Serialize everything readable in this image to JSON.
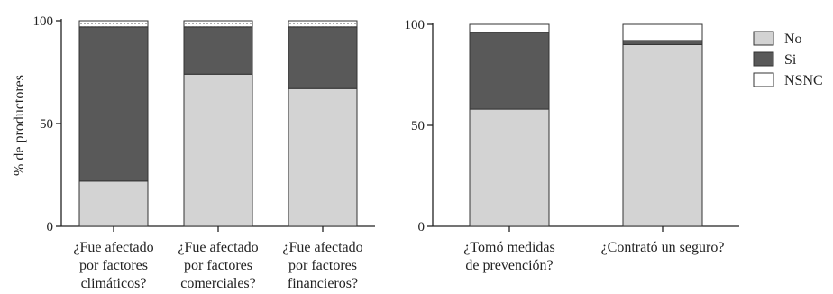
{
  "chart_data": [
    {
      "type": "bar",
      "stacked": true,
      "ylabel": "% de productores",
      "ylim": [
        0,
        100
      ],
      "yticks": [
        0,
        50,
        100
      ],
      "grid": false,
      "categories": [
        [
          "¿Fue afectado",
          "por factores",
          "climáticos?"
        ],
        [
          "¿Fue afectado",
          "por factores",
          "comerciales?"
        ],
        [
          "¿Fue afectado",
          "por factores",
          "financieros?"
        ]
      ],
      "series": [
        {
          "name": "No",
          "values": [
            22,
            74,
            67
          ]
        },
        {
          "name": "Si",
          "values": [
            75,
            23,
            30
          ]
        },
        {
          "name": "NSNC",
          "values": [
            3,
            3,
            3
          ]
        }
      ]
    },
    {
      "type": "bar",
      "stacked": true,
      "ylabel": "",
      "ylim": [
        0,
        100
      ],
      "yticks": [
        0,
        50,
        100
      ],
      "grid": false,
      "categories": [
        [
          "¿Tomó medidas",
          "de prevención?"
        ],
        [
          "¿Contrató un seguro?"
        ]
      ],
      "series": [
        {
          "name": "No",
          "values": [
            58,
            90
          ]
        },
        {
          "name": "Si",
          "values": [
            38,
            2
          ]
        },
        {
          "name": "NSNC",
          "values": [
            4,
            8
          ]
        }
      ]
    }
  ],
  "legend": {
    "placement": "right",
    "items": [
      {
        "label": "No",
        "color": "#d3d3d3",
        "pattern": "solid"
      },
      {
        "label": "Si",
        "color": "#595959",
        "pattern": "solid"
      },
      {
        "label": "NSNC",
        "color": "#ffffff",
        "pattern": "solid"
      }
    ]
  },
  "colors": {
    "No": "#d3d3d3",
    "Si": "#595959",
    "NSNC": "#ffffff",
    "NSNC_dotted": "#ffffff",
    "axis": "#222222",
    "bar_outline": "#333333"
  },
  "nsnc_dotted_in_panel": [
    true,
    false
  ]
}
